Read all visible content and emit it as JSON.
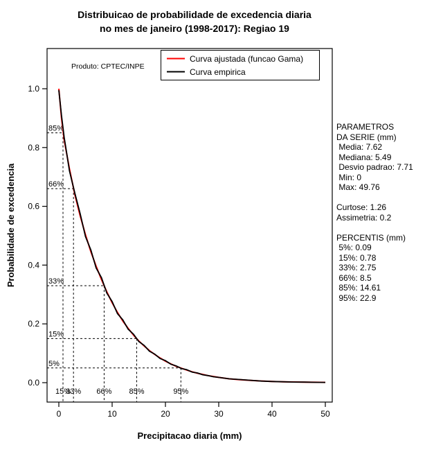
{
  "title": {
    "line1": "Distribuicao de probabilidade de excedencia diaria",
    "line2": "no mes de janeiro (1998-2017): Regiao 19"
  },
  "watermark": "Produto: CPTEC/INPE",
  "legend": {
    "entries": [
      {
        "label": "Curva ajustada (funcao Gama)",
        "color": "#ff0000"
      },
      {
        "label": "Curva empirica",
        "color": "#000000"
      }
    ]
  },
  "stats_panel": {
    "lines": [
      "PARAMETROS",
      "DA SERIE (mm)",
      " Media: 7.62",
      " Mediana: 5.49",
      " Desvio padrao: 7.71",
      " Min: 0",
      " Max: 49.76",
      "",
      "Curtose: 1.26",
      "Assimetria: 0.2",
      "",
      "PERCENTIS (mm)",
      " 5%: 0.09",
      " 15%: 0.78",
      " 33%: 2.75",
      " 66%: 8.5",
      " 85%: 14.61",
      " 95%: 22.9"
    ]
  },
  "chart_data": {
    "type": "line",
    "title": "Distribuicao de probabilidade de excedencia diaria no mes de janeiro (1998-2017): Regiao 19",
    "xlabel": "Precipitacao diaria (mm)",
    "ylabel": "Probabilidade de excedencia",
    "xlim": [
      0,
      50
    ],
    "ylim": [
      0,
      1
    ],
    "grid": false,
    "legend_position": "top",
    "x_tick_labels": [
      "0",
      "10",
      "20",
      "30",
      "40",
      "50"
    ],
    "y_tick_labels": [
      "0.0",
      "0.2",
      "0.4",
      "0.6",
      "0.8",
      "1.0"
    ],
    "x": [
      0,
      0.5,
      1,
      2,
      3,
      4,
      5,
      6,
      7,
      8,
      9,
      10,
      11,
      12,
      13,
      14,
      15,
      16,
      17,
      18,
      19,
      20,
      21,
      22,
      23,
      24,
      25,
      26,
      27,
      28,
      29,
      30,
      32,
      34,
      36,
      38,
      40,
      42,
      44,
      46,
      48,
      50
    ],
    "series": [
      {
        "name": "Curva ajustada (funcao Gama)",
        "color": "#ff0000",
        "values": [
          1.0,
          0.901,
          0.826,
          0.727,
          0.64,
          0.568,
          0.503,
          0.446,
          0.396,
          0.351,
          0.309,
          0.272,
          0.239,
          0.21,
          0.185,
          0.162,
          0.142,
          0.125,
          0.109,
          0.096,
          0.084,
          0.073,
          0.064,
          0.056,
          0.049,
          0.043,
          0.037,
          0.032,
          0.028,
          0.024,
          0.021,
          0.018,
          0.013,
          0.01,
          0.0075,
          0.0056,
          0.0042,
          0.0031,
          0.0023,
          0.0018,
          0.0013,
          0.001
        ]
      },
      {
        "name": "Curva empirica",
        "color": "#000000",
        "values": [
          0.995,
          0.91,
          0.835,
          0.72,
          0.645,
          0.575,
          0.497,
          0.452,
          0.39,
          0.357,
          0.305,
          0.276,
          0.235,
          0.214,
          0.182,
          0.165,
          0.14,
          0.127,
          0.107,
          0.097,
          0.082,
          0.075,
          0.063,
          0.057,
          0.048,
          0.044,
          0.036,
          0.033,
          0.027,
          0.024,
          0.02,
          0.018,
          0.013,
          0.0105,
          0.008,
          0.0055,
          0.004,
          0.003,
          0.0022,
          0.002,
          0.0012,
          0.001
        ]
      }
    ],
    "percentile_guides": [
      {
        "exceedance": 0.85,
        "precip": 0.78,
        "y_label": "85%",
        "x_label": "15%"
      },
      {
        "exceedance": 0.66,
        "precip": 2.75,
        "y_label": "66%",
        "x_label": "33%"
      },
      {
        "exceedance": 0.33,
        "precip": 8.5,
        "y_label": "33%",
        "x_label": "66%"
      },
      {
        "exceedance": 0.15,
        "precip": 14.61,
        "y_label": "15%",
        "x_label": "85%"
      },
      {
        "exceedance": 0.05,
        "precip": 22.9,
        "y_label": "5%",
        "x_label": "95%"
      }
    ],
    "statistics": {
      "media": 7.62,
      "mediana": 5.49,
      "desvio_padrao": 7.71,
      "min": 0,
      "max": 49.76,
      "curtose": 1.26,
      "assimetria": 0.2,
      "percentis": {
        "5%": 0.09,
        "15%": 0.78,
        "33%": 2.75,
        "66%": 8.5,
        "85%": 14.61,
        "95%": 22.9
      }
    }
  },
  "axis": {
    "x_label": "Precipitacao diaria (mm)",
    "y_label": "Probabilidade de excedencia"
  }
}
